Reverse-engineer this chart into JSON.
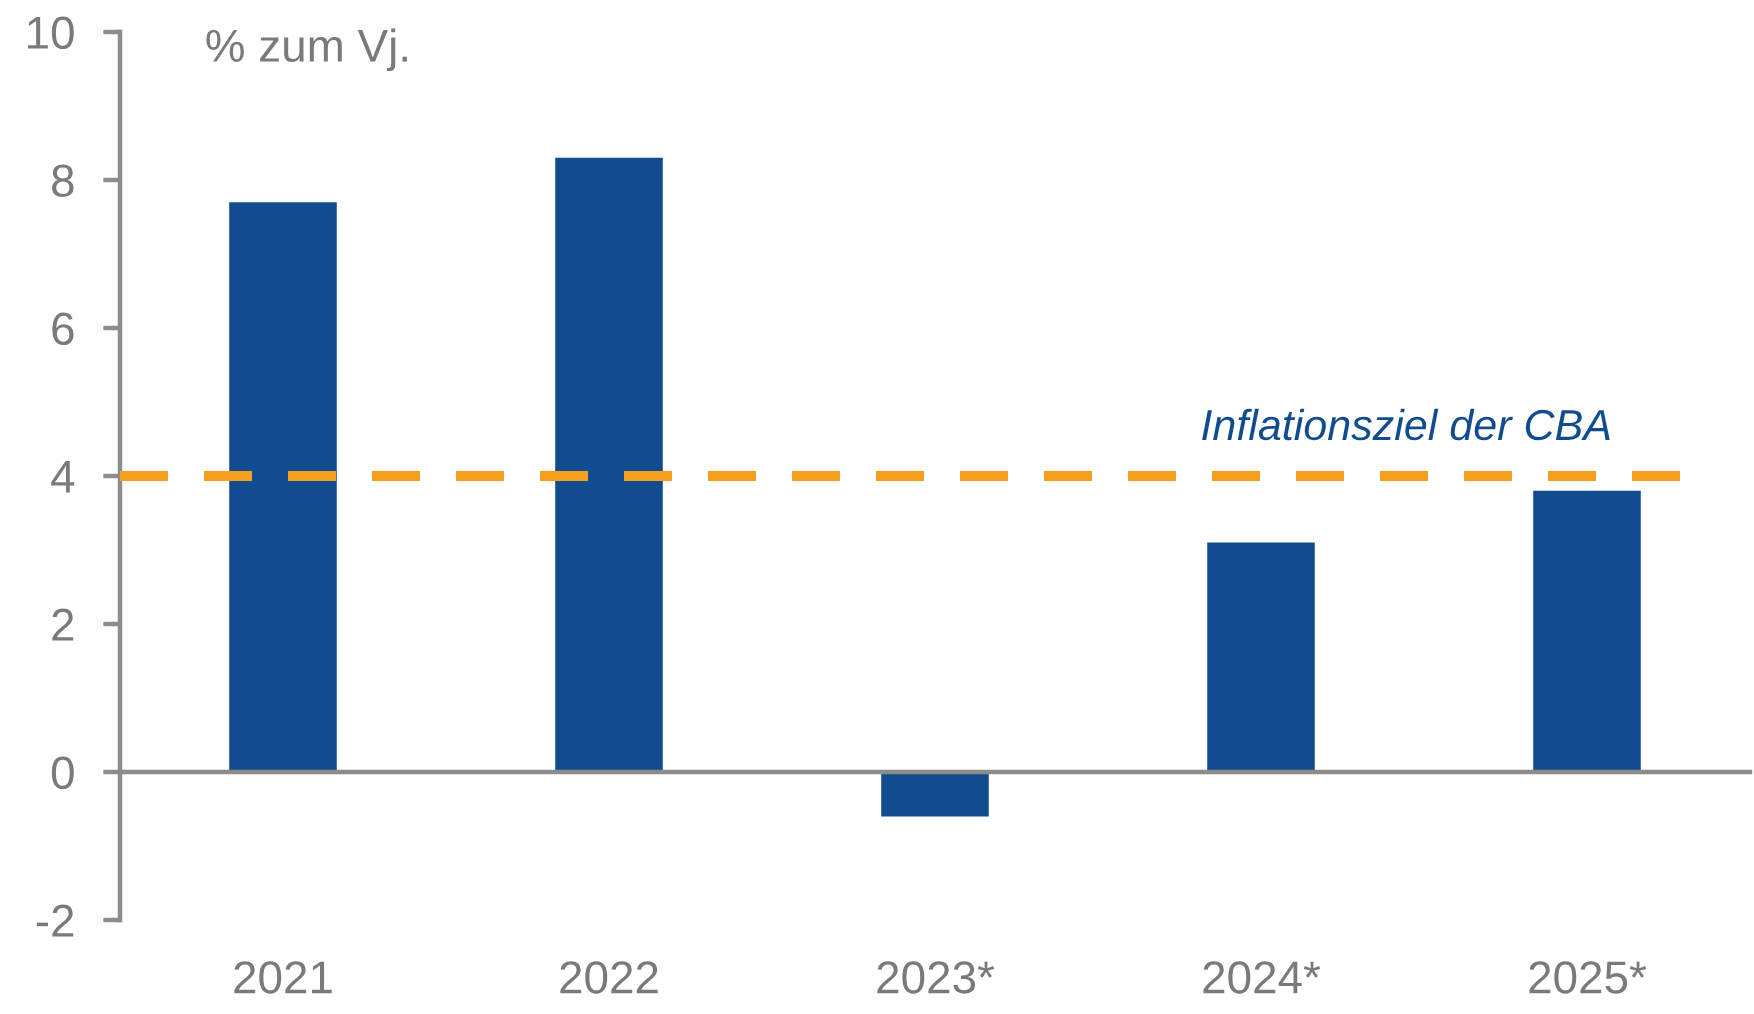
{
  "chart_data": {
    "type": "bar",
    "ylabel": "% zum Vj.",
    "categories": [
      "2021",
      "2022",
      "2023*",
      "2024*",
      "2025*"
    ],
    "values": [
      7.7,
      8.3,
      -0.6,
      3.1,
      3.8
    ],
    "color": "#114d8e",
    "ylim": [
      -2,
      10
    ],
    "yticks": [
      -2,
      0,
      2,
      4,
      6,
      8,
      10
    ],
    "ref_lines": [
      {
        "axis": "y",
        "value": 4,
        "label": "Inflationsziel der CBA",
        "color": "#f59f1e",
        "line_style": "dashed"
      }
    ]
  }
}
